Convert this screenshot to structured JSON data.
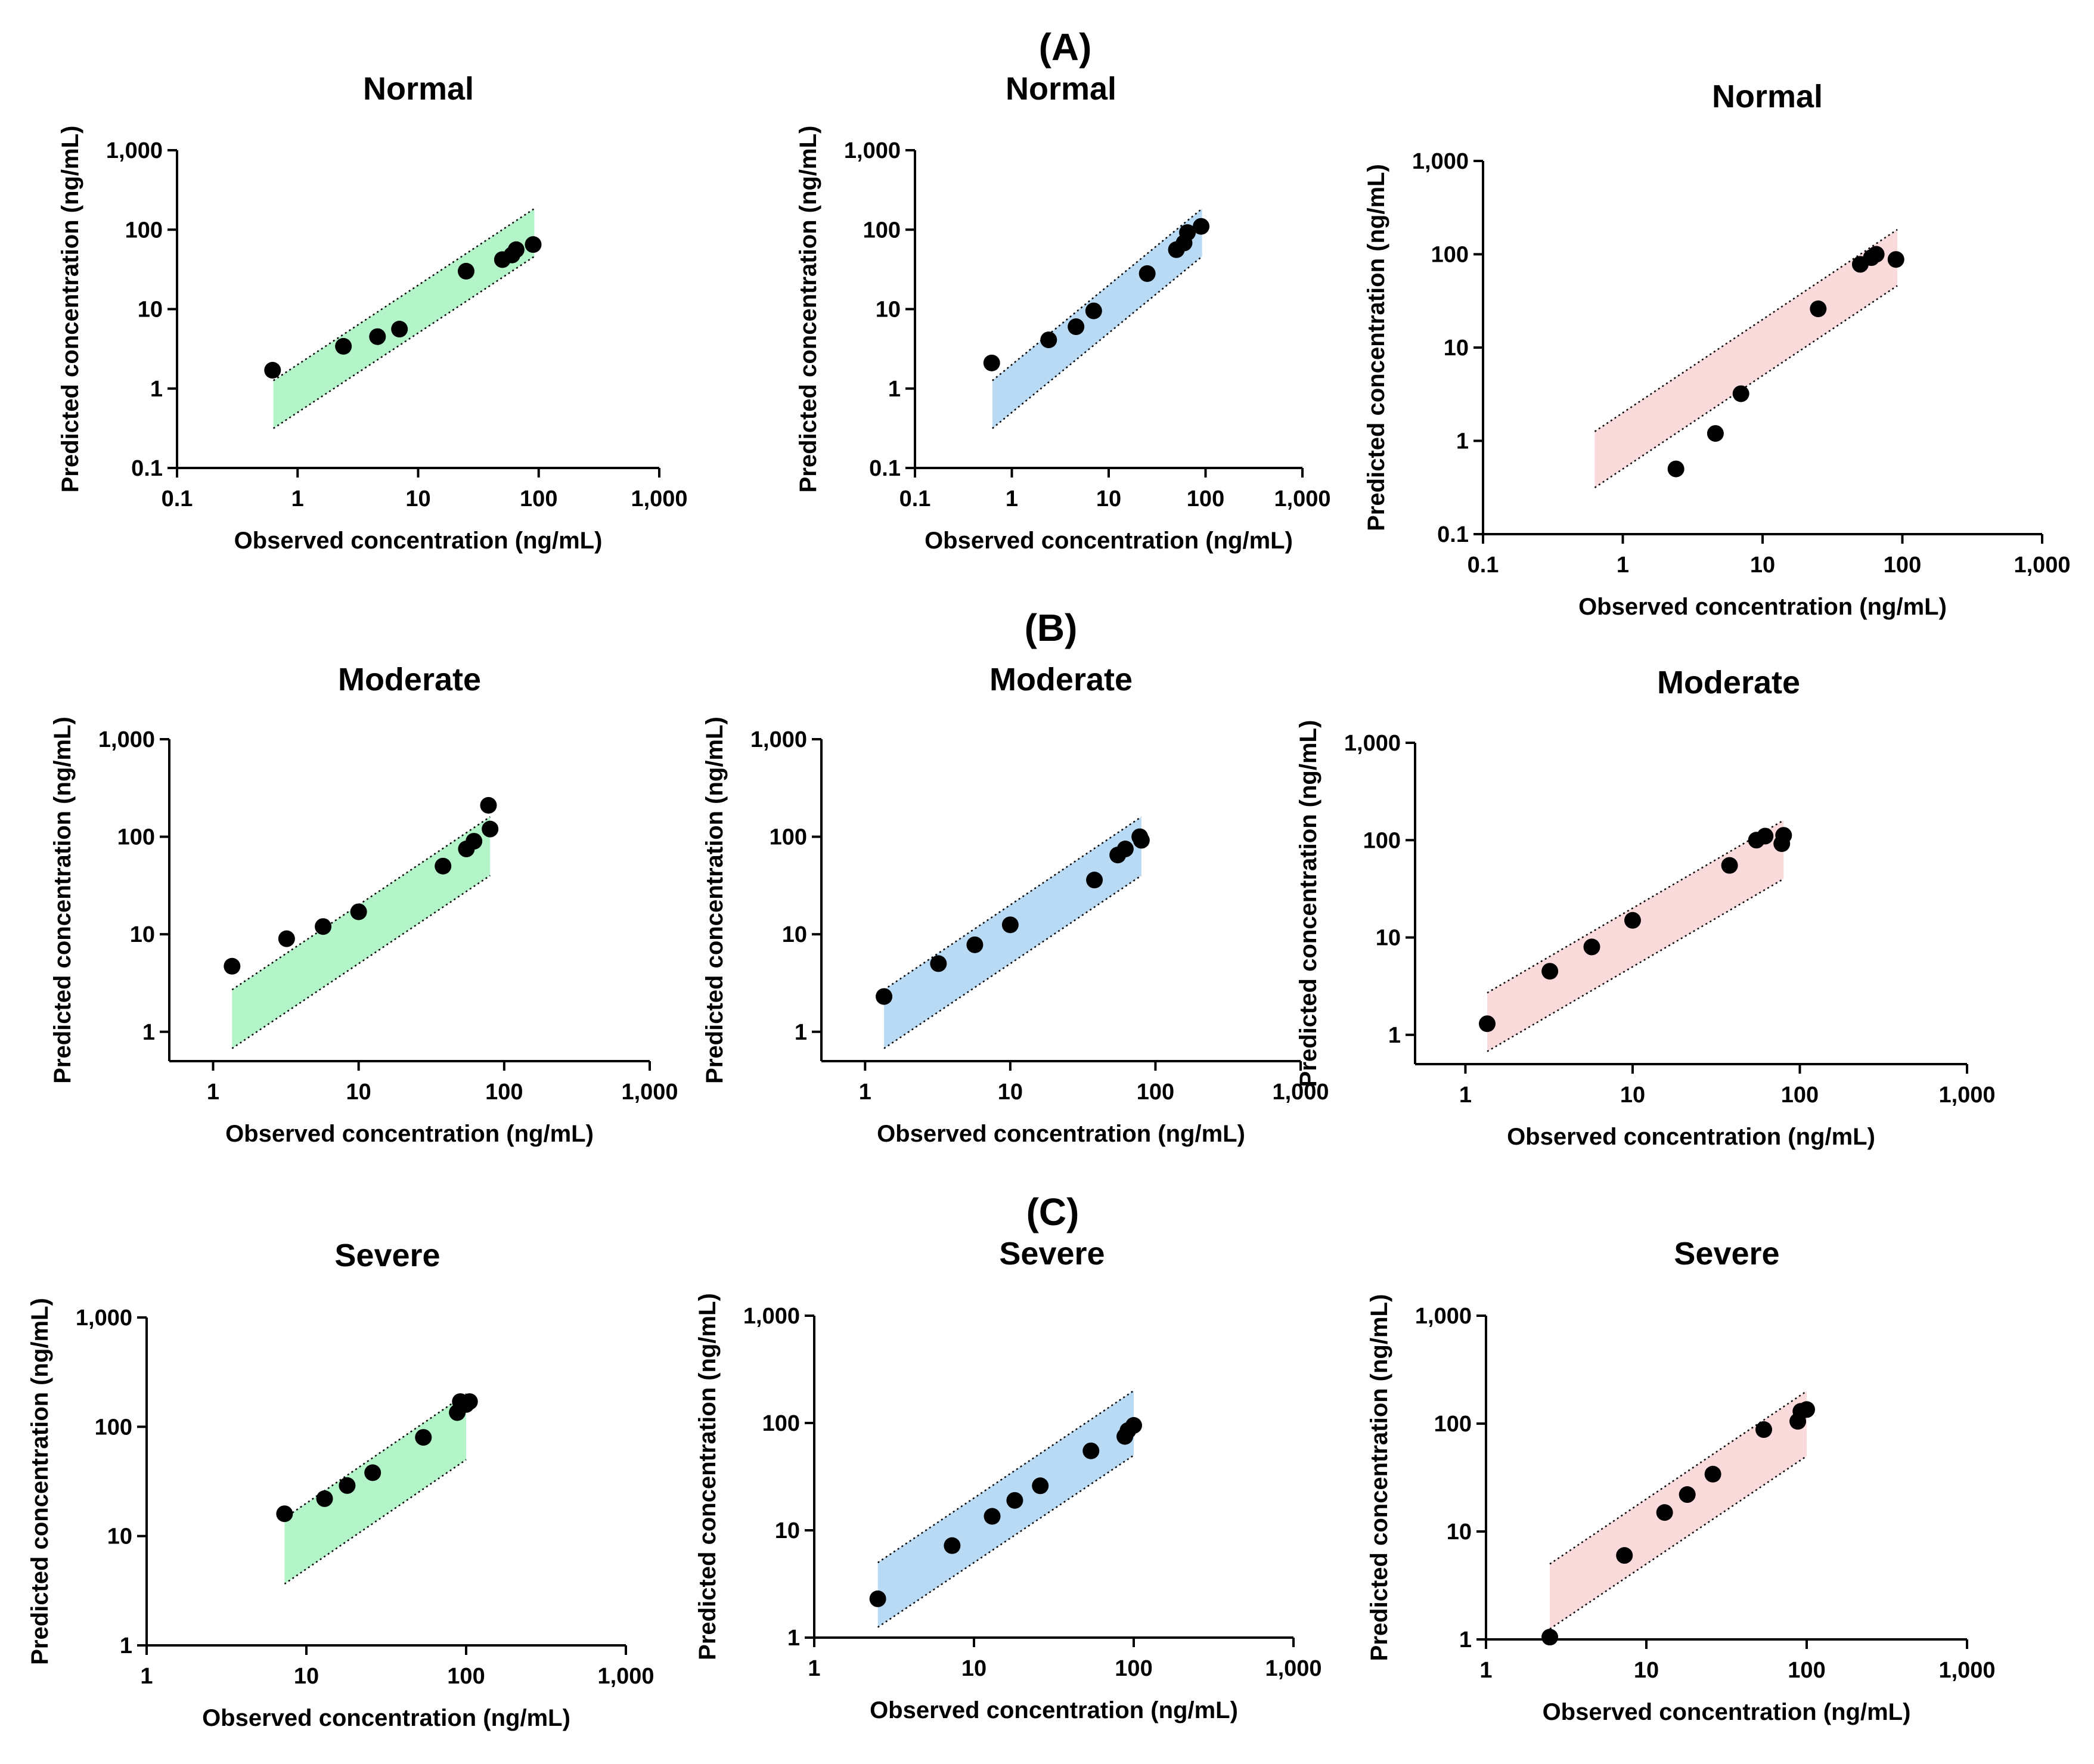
{
  "figure": {
    "group_labels": [
      "(A)",
      "(B)",
      "(C)"
    ]
  },
  "chart_data": [
    {
      "id": "A1",
      "type": "scatter",
      "title": "Normal",
      "xlabel": "Observed concentration (ng/mL)",
      "ylabel": "Predicted concentration (ng/mL)",
      "xscale": "log",
      "yscale": "log",
      "xlim": [
        0.1,
        1000
      ],
      "ylim": [
        0.1,
        1000
      ],
      "xticks": [
        "0.1",
        "1",
        "10",
        "100",
        "1,000"
      ],
      "yticks": [
        "0.1",
        "1",
        "10",
        "100",
        "1,000"
      ],
      "band": {
        "color": "#b3f5c9",
        "x": [
          0.63,
          92
        ],
        "lower_fold": 0.5,
        "upper_fold": 2
      },
      "points": {
        "x": [
          0.62,
          2.4,
          4.6,
          7.0,
          25,
          50,
          60,
          65,
          90
        ],
        "y": [
          1.7,
          3.4,
          4.5,
          5.6,
          30,
          42,
          48,
          56,
          65
        ]
      }
    },
    {
      "id": "A2",
      "type": "scatter",
      "title": "Normal",
      "xlabel": "Observed concentration (ng/mL)",
      "ylabel": "Predicted concentration (ng/mL)",
      "xscale": "log",
      "yscale": "log",
      "xlim": [
        0.1,
        1000
      ],
      "ylim": [
        0.1,
        1000
      ],
      "xticks": [
        "0.1",
        "1",
        "10",
        "100",
        "1,000"
      ],
      "yticks": [
        "0.1",
        "1",
        "10",
        "100",
        "1,000"
      ],
      "band": {
        "color": "#b9daf5",
        "x": [
          0.63,
          92
        ],
        "lower_fold": 0.5,
        "upper_fold": 2
      },
      "points": {
        "x": [
          0.62,
          2.4,
          4.6,
          7.0,
          25,
          50,
          60,
          65,
          90
        ],
        "y": [
          2.1,
          4.1,
          6.0,
          9.5,
          28,
          56,
          68,
          92,
          110
        ]
      }
    },
    {
      "id": "A3",
      "type": "scatter",
      "title": "Normal",
      "xlabel": "Observed concentration (ng/mL)",
      "ylabel": "Predicted concentration (ng/mL)",
      "xscale": "log",
      "yscale": "log",
      "xlim": [
        0.1,
        1000
      ],
      "ylim": [
        0.1,
        1000
      ],
      "xticks": [
        "0.1",
        "1",
        "10",
        "100",
        "1,000"
      ],
      "yticks": [
        "0.1",
        "1",
        "10",
        "100",
        "1,000"
      ],
      "band": {
        "color": "#fadada",
        "x": [
          0.63,
          92
        ],
        "lower_fold": 0.5,
        "upper_fold": 2
      },
      "points": {
        "x": [
          2.4,
          4.6,
          7.0,
          25,
          50,
          60,
          65,
          90
        ],
        "y": [
          0.5,
          1.2,
          3.2,
          26,
          78,
          92,
          100,
          88
        ]
      }
    },
    {
      "id": "B1",
      "type": "scatter",
      "title": "Moderate",
      "xlabel": "Observed concentration (ng/mL)",
      "ylabel": "Predicted concentration (ng/mL)",
      "xscale": "log",
      "yscale": "log",
      "xlim": [
        0.5,
        1000
      ],
      "ylim": [
        0.5,
        1000
      ],
      "xticks": [
        "1",
        "10",
        "100",
        "1,000"
      ],
      "yticks": [
        "1",
        "10",
        "100",
        "1,000"
      ],
      "band": {
        "color": "#b3f5c9",
        "x": [
          1.35,
          80
        ],
        "lower_fold": 0.5,
        "upper_fold": 2
      },
      "points": {
        "x": [
          1.35,
          3.2,
          5.7,
          10,
          38,
          55,
          62,
          78,
          80
        ],
        "y": [
          4.7,
          9.0,
          12,
          17,
          50,
          75,
          90,
          210,
          120
        ]
      }
    },
    {
      "id": "B2",
      "type": "scatter",
      "title": "Moderate",
      "xlabel": "Observed concentration (ng/mL)",
      "ylabel": "Predicted concentration (ng/mL)",
      "xscale": "log",
      "yscale": "log",
      "xlim": [
        0.5,
        1000
      ],
      "ylim": [
        0.5,
        1000
      ],
      "xticks": [
        "1",
        "10",
        "100",
        "1,000"
      ],
      "yticks": [
        "1",
        "10",
        "100",
        "1,000"
      ],
      "band": {
        "color": "#b9daf5",
        "x": [
          1.35,
          80
        ],
        "lower_fold": 0.5,
        "upper_fold": 2
      },
      "points": {
        "x": [
          1.35,
          3.2,
          5.7,
          10,
          38,
          55,
          62,
          78,
          80
        ],
        "y": [
          2.3,
          5.0,
          7.8,
          12.5,
          36,
          65,
          75,
          100,
          92
        ]
      }
    },
    {
      "id": "B3",
      "type": "scatter",
      "title": "Moderate",
      "xlabel": "Observed concentration (ng/mL)",
      "ylabel": "Predicted concentration (ng/mL)",
      "xscale": "log",
      "yscale": "log",
      "xlim": [
        0.5,
        1000
      ],
      "ylim": [
        0.5,
        1000
      ],
      "xticks": [
        "1",
        "10",
        "100",
        "1,000"
      ],
      "yticks": [
        "1",
        "10",
        "100",
        "1,000"
      ],
      "band": {
        "color": "#fadada",
        "x": [
          1.35,
          80
        ],
        "lower_fold": 0.5,
        "upper_fold": 2
      },
      "points": {
        "x": [
          1.35,
          3.2,
          5.7,
          10,
          38,
          55,
          62,
          78,
          80
        ],
        "y": [
          1.3,
          4.5,
          8.0,
          15,
          55,
          100,
          110,
          92,
          112
        ]
      }
    },
    {
      "id": "C1",
      "type": "scatter",
      "title": "Severe",
      "xlabel": "Observed concentration (ng/mL)",
      "ylabel": "Predicted concentration (ng/mL)",
      "xscale": "log",
      "yscale": "log",
      "xlim": [
        1,
        1000
      ],
      "ylim": [
        1,
        1000
      ],
      "xticks": [
        "1",
        "10",
        "100",
        "1,000"
      ],
      "yticks": [
        "1",
        "10",
        "100",
        "1,000"
      ],
      "band": {
        "color": "#b3f5c9",
        "x": [
          7.3,
          100
        ],
        "lower_fold": 0.5,
        "upper_fold": 2
      },
      "points": {
        "x": [
          7.3,
          13,
          18,
          26,
          54,
          88,
          92,
          100,
          105
        ],
        "y": [
          16,
          22,
          29,
          38,
          80,
          135,
          170,
          160,
          170
        ]
      }
    },
    {
      "id": "C2",
      "type": "scatter",
      "title": "Severe",
      "xlabel": "Observed concentration (ng/mL)",
      "ylabel": "Predicted concentration (ng/mL)",
      "xscale": "log",
      "yscale": "log",
      "xlim": [
        1,
        1000
      ],
      "ylim": [
        1,
        1000
      ],
      "xticks": [
        "1",
        "10",
        "100",
        "1,000"
      ],
      "yticks": [
        "1",
        "10",
        "100",
        "1,000"
      ],
      "band": {
        "color": "#b9daf5",
        "x": [
          2.5,
          100
        ],
        "lower_fold": 0.5,
        "upper_fold": 2
      },
      "points": {
        "x": [
          2.5,
          7.3,
          13,
          18,
          26,
          54,
          88,
          92,
          100
        ],
        "y": [
          2.3,
          7.2,
          13.5,
          19,
          26,
          55,
          75,
          85,
          95
        ]
      }
    },
    {
      "id": "C3",
      "type": "scatter",
      "title": "Severe",
      "xlabel": "Observed concentration (ng/mL)",
      "ylabel": "Predicted concentration (ng/mL)",
      "xscale": "log",
      "yscale": "log",
      "xlim": [
        1,
        1000
      ],
      "ylim": [
        1,
        1000
      ],
      "xticks": [
        "1",
        "10",
        "100",
        "1,000"
      ],
      "yticks": [
        "1",
        "10",
        "100",
        "1,000"
      ],
      "band": {
        "color": "#fadada",
        "x": [
          2.5,
          100
        ],
        "lower_fold": 0.5,
        "upper_fold": 2
      },
      "points": {
        "x": [
          2.5,
          7.3,
          13,
          18,
          26,
          54,
          88,
          92,
          100
        ],
        "y": [
          1.05,
          6.0,
          15,
          22,
          34,
          88,
          105,
          130,
          135
        ]
      }
    }
  ]
}
